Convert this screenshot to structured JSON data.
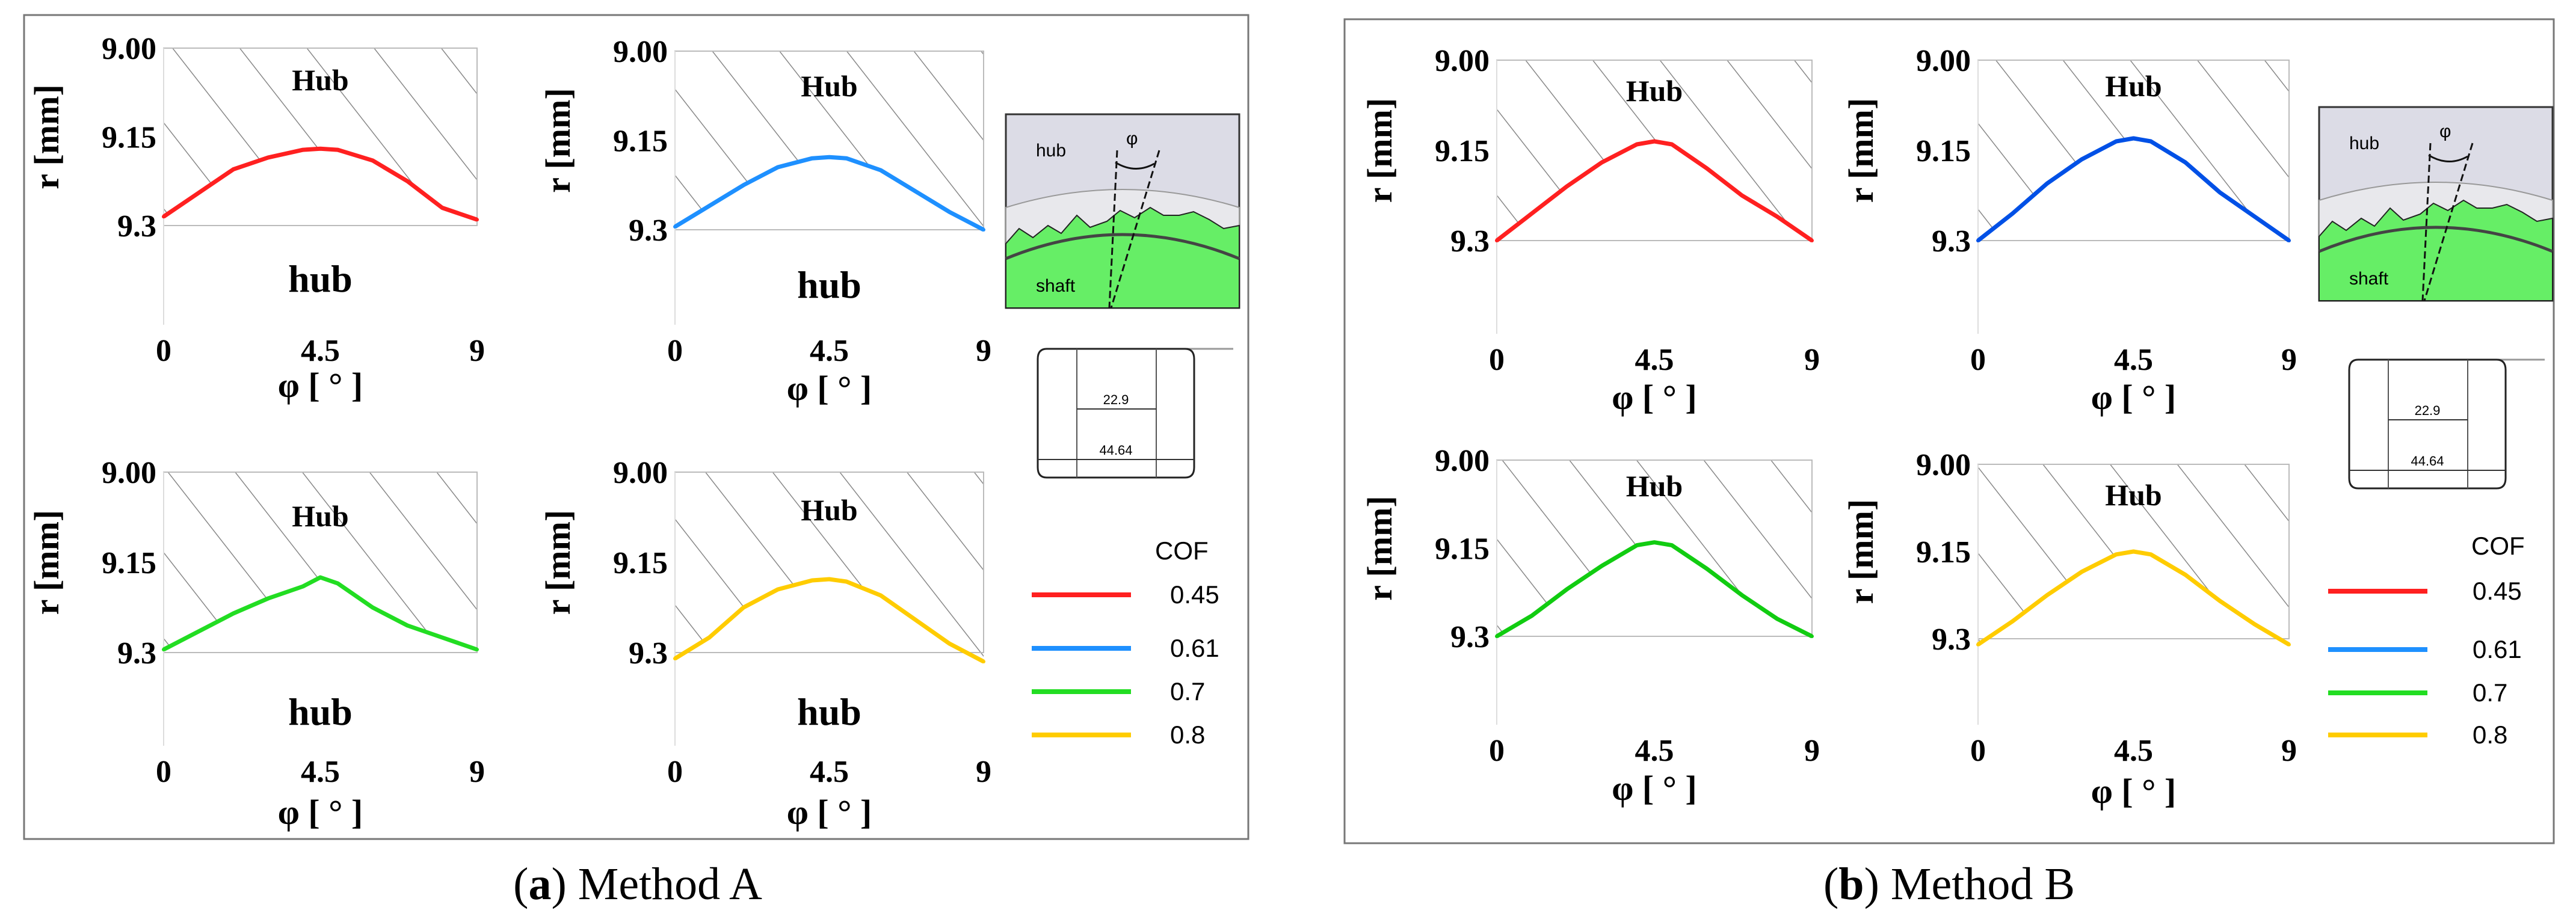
{
  "chart_data": [
    {
      "type": "line",
      "panel": "a",
      "position": "top-left",
      "title": "Hub",
      "region_label": "hub",
      "ylabel": "r [mm]",
      "xlabel": "φ [ ° ]",
      "ylim": [
        9.0,
        9.3
      ],
      "y_inverted": true,
      "yticks": [
        "9.00",
        "9.15",
        "9.3"
      ],
      "xticks": [
        "0",
        "4.5",
        "9"
      ],
      "series": [
        {
          "name": "0.45",
          "color": "#ff2020",
          "x": [
            0,
            1,
            2,
            3,
            4,
            4.5,
            5,
            6,
            7,
            8,
            9
          ],
          "y": [
            9.285,
            9.245,
            9.205,
            9.185,
            9.172,
            9.17,
            9.172,
            9.19,
            9.225,
            9.27,
            9.29
          ]
        }
      ]
    },
    {
      "type": "line",
      "panel": "a",
      "position": "top-right",
      "title": "Hub",
      "region_label": "hub",
      "ylabel": "r [mm]",
      "xlabel": "φ [ ° ]",
      "ylim": [
        9.0,
        9.3
      ],
      "y_inverted": true,
      "yticks": [
        "9.00",
        "9.15",
        "9.3"
      ],
      "xticks": [
        "0",
        "4.5",
        "9"
      ],
      "series": [
        {
          "name": "0.61",
          "color": "#1e90ff",
          "x": [
            0,
            1,
            2,
            3,
            4,
            4.5,
            5,
            6,
            7,
            8,
            9
          ],
          "y": [
            9.295,
            9.26,
            9.225,
            9.195,
            9.18,
            9.178,
            9.18,
            9.2,
            9.235,
            9.27,
            9.3
          ]
        }
      ]
    },
    {
      "type": "line",
      "panel": "a",
      "position": "bottom-left",
      "title": "Hub",
      "region_label": "hub",
      "ylabel": "r [mm]",
      "xlabel": "φ [ ° ]",
      "ylim": [
        9.0,
        9.3
      ],
      "y_inverted": true,
      "yticks": [
        "9.00",
        "9.15",
        "9.3"
      ],
      "xticks": [
        "0",
        "4.5",
        "9"
      ],
      "series": [
        {
          "name": "0.7",
          "color": "#22dd22",
          "x": [
            0,
            1,
            2,
            3,
            4,
            4.5,
            5,
            6,
            7,
            8,
            9
          ],
          "y": [
            9.295,
            9.265,
            9.235,
            9.21,
            9.19,
            9.175,
            9.185,
            9.225,
            9.255,
            9.275,
            9.295
          ]
        }
      ]
    },
    {
      "type": "line",
      "panel": "a",
      "position": "bottom-right",
      "title": "Hub",
      "region_label": "hub",
      "ylabel": "r [mm]",
      "xlabel": "φ [ ° ]",
      "ylim": [
        9.0,
        9.3
      ],
      "y_inverted": true,
      "yticks": [
        "9.00",
        "9.15",
        "9.3"
      ],
      "xticks": [
        "0",
        "4.5",
        "9"
      ],
      "series": [
        {
          "name": "0.8",
          "color": "#ffcc00",
          "x": [
            0,
            1,
            2,
            3,
            4,
            4.5,
            5,
            6,
            7,
            8,
            9
          ],
          "y": [
            9.31,
            9.275,
            9.225,
            9.195,
            9.18,
            9.178,
            9.182,
            9.205,
            9.245,
            9.285,
            9.315
          ]
        }
      ]
    },
    {
      "type": "line",
      "panel": "b",
      "position": "top-left",
      "title": "Hub",
      "ylabel": "r [mm]",
      "xlabel": "φ [ ° ]",
      "ylim": [
        9.0,
        9.3
      ],
      "y_inverted": true,
      "yticks": [
        "9.00",
        "9.15",
        "9.3"
      ],
      "xticks": [
        "0",
        "4.5",
        "9"
      ],
      "series": [
        {
          "name": "0.45",
          "color": "#ff2020",
          "x": [
            0,
            1,
            2,
            3,
            4,
            4.5,
            5,
            6,
            7,
            8,
            9
          ],
          "y": [
            9.3,
            9.255,
            9.21,
            9.17,
            9.14,
            9.135,
            9.14,
            9.18,
            9.225,
            9.26,
            9.3
          ]
        }
      ]
    },
    {
      "type": "line",
      "panel": "b",
      "position": "top-right",
      "title": "Hub",
      "ylabel": "r [mm]",
      "xlabel": "φ [ ° ]",
      "ylim": [
        9.0,
        9.3
      ],
      "y_inverted": true,
      "yticks": [
        "9.00",
        "9.15",
        "9.3"
      ],
      "xticks": [
        "0",
        "4.5",
        "9"
      ],
      "series": [
        {
          "name": "0.61",
          "color": "#0050e6",
          "x": [
            0,
            1,
            2,
            3,
            4,
            4.5,
            5,
            6,
            7,
            8,
            9
          ],
          "y": [
            9.3,
            9.255,
            9.205,
            9.165,
            9.135,
            9.13,
            9.135,
            9.17,
            9.22,
            9.26,
            9.3
          ]
        }
      ]
    },
    {
      "type": "line",
      "panel": "b",
      "position": "bottom-left",
      "title": "Hub",
      "ylabel": "r [mm]",
      "xlabel": "φ [ ° ]",
      "ylim": [
        9.0,
        9.3
      ],
      "y_inverted": true,
      "yticks": [
        "9.00",
        "9.15",
        "9.3"
      ],
      "xticks": [
        "0",
        "4.5",
        "9"
      ],
      "series": [
        {
          "name": "0.7",
          "color": "#11cc11",
          "x": [
            0,
            1,
            2,
            3,
            4,
            4.5,
            5,
            6,
            7,
            8,
            9
          ],
          "y": [
            9.3,
            9.265,
            9.22,
            9.18,
            9.145,
            9.14,
            9.145,
            9.185,
            9.23,
            9.27,
            9.3
          ]
        }
      ]
    },
    {
      "type": "line",
      "panel": "b",
      "position": "bottom-right",
      "title": "Hub",
      "ylabel": "r [mm]",
      "xlabel": "φ [ ° ]",
      "ylim": [
        9.0,
        9.3
      ],
      "y_inverted": true,
      "yticks": [
        "9.00",
        "9.15",
        "9.3"
      ],
      "xticks": [
        "0",
        "4.5",
        "9"
      ],
      "series": [
        {
          "name": "0.8",
          "color": "#ffcc00",
          "x": [
            0,
            1,
            2,
            3,
            4,
            4.5,
            5,
            6,
            7,
            8,
            9
          ],
          "y": [
            9.31,
            9.27,
            9.225,
            9.185,
            9.155,
            9.15,
            9.155,
            9.19,
            9.235,
            9.275,
            9.31
          ]
        }
      ]
    }
  ],
  "legend": {
    "title": "COF",
    "entries": [
      {
        "label": "0.45",
        "color": "#ff2020"
      },
      {
        "label": "0.61",
        "color": "#1e90ff"
      },
      {
        "label": "0.7",
        "color": "#22dd22"
      },
      {
        "label": "0.8",
        "color": "#ffcc00"
      }
    ]
  },
  "schematic": {
    "hub_label": "hub",
    "shaft_label": "shaft",
    "angle_label": "φ"
  },
  "section": {
    "inner_dim": "22.9",
    "outer_dim": "44.64"
  },
  "captions": {
    "a": {
      "letter": "a",
      "text": " Method A"
    },
    "b": {
      "letter": "b",
      "text": " Method B"
    }
  }
}
